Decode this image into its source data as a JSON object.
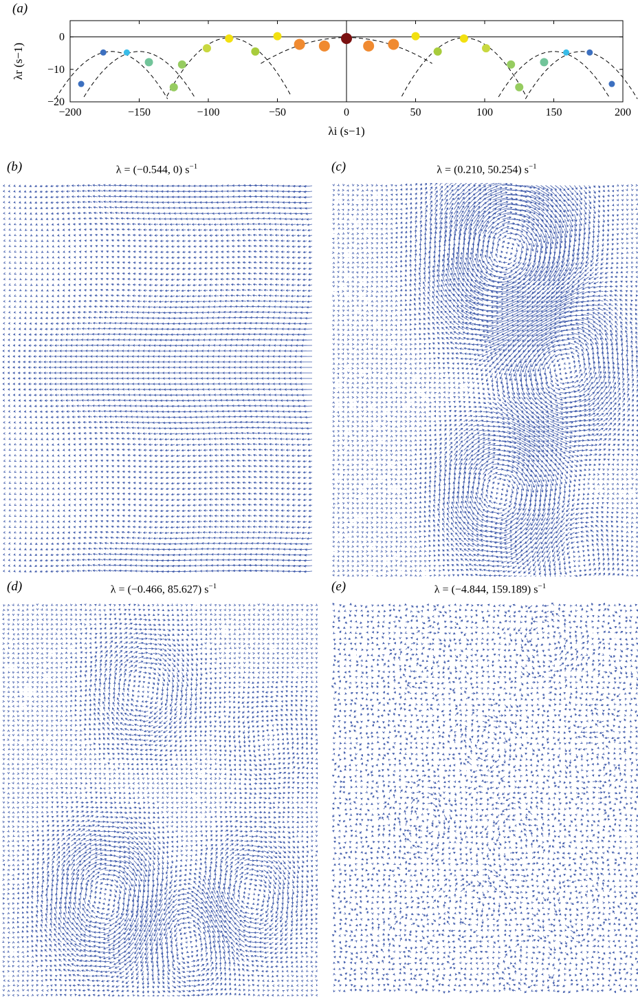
{
  "figure": {
    "panels": [
      {
        "label": "(a)"
      },
      {
        "label": "(b)",
        "title": "λ = (−0.544, 0) s",
        "unit_exp": "−1"
      },
      {
        "label": "(c)",
        "title": "λ = (0.210, 50.254) s",
        "unit_exp": "−1"
      },
      {
        "label": "(d)",
        "title": "λ = (−0.466, 85.627) s",
        "unit_exp": "−1"
      },
      {
        "label": "(e)",
        "title": "λ = (−4.844, 159.189) s",
        "unit_exp": "−1"
      }
    ],
    "vector_color": "#3a56a8"
  },
  "chart_data": {
    "type": "scatter",
    "xlabel": "λi (s−1)",
    "ylabel": "λr (s−1)",
    "xlim": [
      -200,
      200
    ],
    "ylim": [
      -20,
      5
    ],
    "x_ticks": [
      -200,
      -150,
      -100,
      -50,
      0,
      50,
      100,
      150,
      200
    ],
    "y_ticks": [
      0,
      -10,
      -20
    ],
    "grid": false,
    "reference_lines": [
      "x = 0",
      "y = 0"
    ],
    "points": [
      {
        "x": 0,
        "y": -0.5,
        "color": "#7a1010",
        "size": "large"
      },
      {
        "x": -16,
        "y": -2.8,
        "color": "#f08a30",
        "size": "large"
      },
      {
        "x": 16,
        "y": -2.8,
        "color": "#f08a30",
        "size": "large"
      },
      {
        "x": -34,
        "y": -2.3,
        "color": "#f08a30",
        "size": "large"
      },
      {
        "x": 34,
        "y": -2.3,
        "color": "#f08a30",
        "size": "large"
      },
      {
        "x": -50,
        "y": 0.2,
        "color": "#f2e010",
        "size": "medium"
      },
      {
        "x": 50,
        "y": 0.2,
        "color": "#f2e010",
        "size": "medium"
      },
      {
        "x": -85,
        "y": -0.5,
        "color": "#f2e010",
        "size": "medium"
      },
      {
        "x": 85,
        "y": -0.5,
        "color": "#f2e010",
        "size": "medium"
      },
      {
        "x": -66,
        "y": -4.5,
        "color": "#a8cc3c",
        "size": "medium"
      },
      {
        "x": 66,
        "y": -4.5,
        "color": "#a8cc3c",
        "size": "medium"
      },
      {
        "x": -101,
        "y": -3.5,
        "color": "#c8d840",
        "size": "medium"
      },
      {
        "x": 101,
        "y": -3.5,
        "color": "#c8d840",
        "size": "medium"
      },
      {
        "x": -119,
        "y": -8.5,
        "color": "#96cc60",
        "size": "medium"
      },
      {
        "x": 119,
        "y": -8.5,
        "color": "#96cc60",
        "size": "medium"
      },
      {
        "x": -125,
        "y": -15.5,
        "color": "#96cc60",
        "size": "medium"
      },
      {
        "x": 125,
        "y": -15.5,
        "color": "#96cc60",
        "size": "medium"
      },
      {
        "x": -143,
        "y": -7.8,
        "color": "#72c49a",
        "size": "medium"
      },
      {
        "x": 143,
        "y": -7.8,
        "color": "#72c49a",
        "size": "medium"
      },
      {
        "x": -159,
        "y": -4.8,
        "color": "#38bce8",
        "size": "small"
      },
      {
        "x": 159,
        "y": -4.8,
        "color": "#38bce8",
        "size": "small"
      },
      {
        "x": -176,
        "y": -4.8,
        "color": "#3c70c0",
        "size": "small"
      },
      {
        "x": 176,
        "y": -4.8,
        "color": "#3c70c0",
        "size": "small"
      },
      {
        "x": -192,
        "y": -14.5,
        "color": "#3c70c0",
        "size": "small"
      },
      {
        "x": 192,
        "y": -14.5,
        "color": "#3c70c0",
        "size": "small"
      }
    ]
  }
}
